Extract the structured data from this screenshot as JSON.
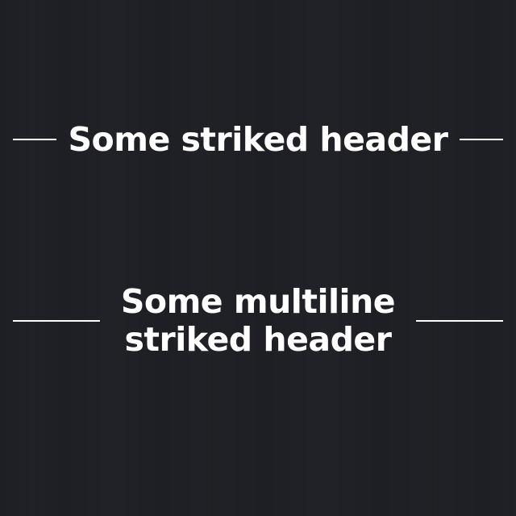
{
  "headers": [
    {
      "lines": [
        "Some striked header"
      ]
    },
    {
      "lines": [
        "Some multiline",
        "striked header"
      ]
    }
  ],
  "colors": {
    "background": "#1e1f24",
    "text": "#ffffff",
    "line": "#ffffff"
  }
}
